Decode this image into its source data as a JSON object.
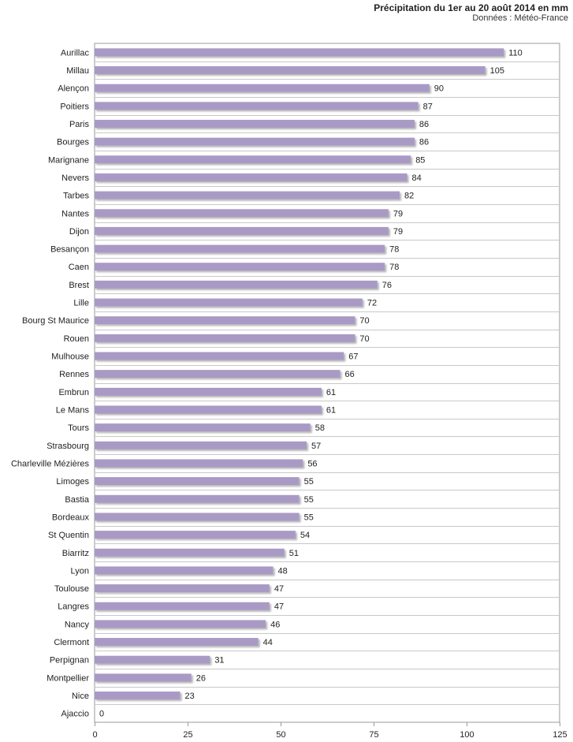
{
  "chart_data": {
    "type": "bar",
    "orientation": "horizontal",
    "title": "Précipitation du 1er au 20 août 2014 en mm",
    "subtitle": "Données : Météo-France",
    "xlim": [
      0,
      125
    ],
    "xticks": [
      "0",
      "25",
      "50",
      "75",
      "100",
      "125"
    ],
    "grid": "horizontal lines between categories",
    "bar_color": "#a99ac5",
    "categories": [
      "Aurillac",
      "Millau",
      "Alençon",
      "Poitiers",
      "Paris",
      "Bourges",
      "Marignane",
      "Nevers",
      "Tarbes",
      "Nantes",
      "Dijon",
      "Besançon",
      "Caen",
      "Brest",
      "Lille",
      "Bourg St Maurice",
      "Rouen",
      "Mulhouse",
      "Rennes",
      "Embrun",
      "Le Mans",
      "Tours",
      "Strasbourg",
      "Charleville Mézières",
      "Limoges",
      "Bastia",
      "Bordeaux",
      "St Quentin",
      "Biarritz",
      "Lyon",
      "Toulouse",
      "Langres",
      "Nancy",
      "Clermont",
      "Perpignan",
      "Montpellier",
      "Nice",
      "Ajaccio"
    ],
    "values": [
      110,
      105,
      90,
      87,
      86,
      86,
      85,
      84,
      82,
      79,
      79,
      78,
      78,
      76,
      72,
      70,
      70,
      67,
      66,
      61,
      61,
      58,
      57,
      56,
      55,
      55,
      55,
      54,
      51,
      48,
      47,
      47,
      46,
      44,
      31,
      26,
      23,
      0
    ]
  }
}
